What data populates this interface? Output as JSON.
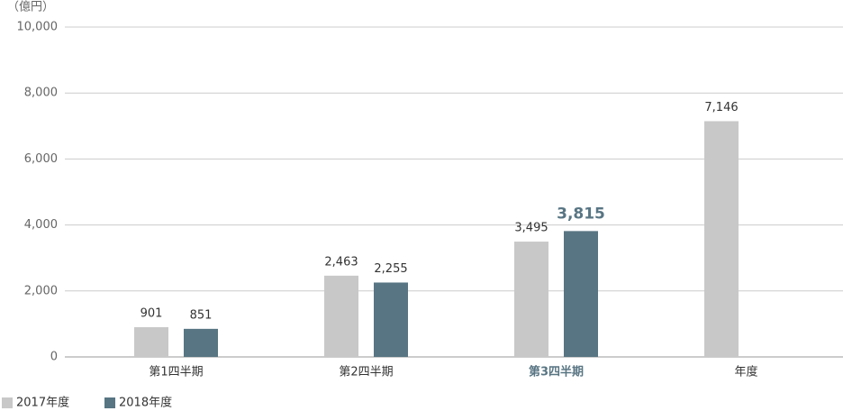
{
  "chart_data": {
    "type": "grouped-bar",
    "unit_label": "（億円）",
    "categories": [
      "第1四半期",
      "第2四半期",
      "第3四半期",
      "年度"
    ],
    "series": [
      {
        "name": "2017年度",
        "color": "#c8c8c8",
        "values": [
          901,
          2463,
          3495,
          7146
        ],
        "value_labels": [
          "901",
          "2,463",
          "3,495",
          "7,146"
        ]
      },
      {
        "name": "2018年度",
        "color": "#587583",
        "values": [
          851,
          2255,
          3815,
          null
        ],
        "value_labels": [
          "851",
          "2,255",
          "3,815",
          null
        ]
      }
    ],
    "highlight_index": 2,
    "highlight_color": "#587583",
    "ylim": [
      0,
      10000
    ],
    "yticks": [
      0,
      {
        "value": 2000,
        "label": "2,000"
      },
      {
        "value": 4000,
        "label": "4,000"
      },
      {
        "value": 6000,
        "label": "6,000"
      },
      {
        "value": 8000,
        "label": "8,000"
      },
      {
        "value": 10000,
        "label": "10,000"
      }
    ],
    "grid": true,
    "legend": "bottom-left"
  }
}
